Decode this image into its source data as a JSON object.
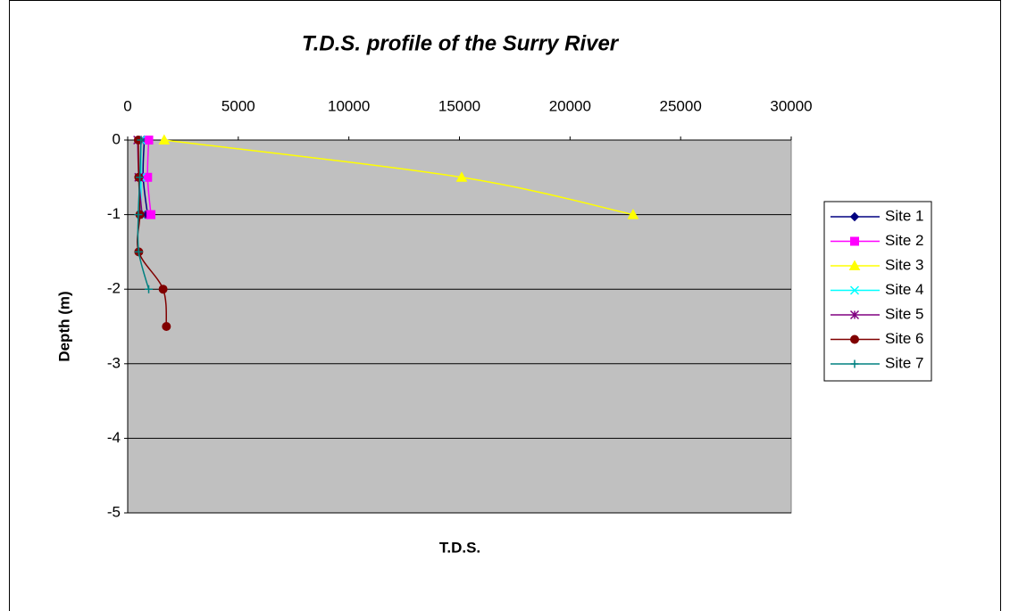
{
  "chart_data": {
    "type": "scatter",
    "title": "T.D.S. profile of the Surry River",
    "x_label": "T.D.S.",
    "y_label": "Depth (m)",
    "xlim": [
      0,
      30000
    ],
    "xticks": [
      0,
      5000,
      10000,
      15000,
      20000,
      25000,
      30000
    ],
    "ylim": [
      -5,
      0
    ],
    "yticks": [
      0,
      -1,
      -2,
      -3,
      -4,
      -5
    ],
    "grid": true,
    "smooth": true,
    "legend": "right",
    "series": [
      {
        "name": "Site 1",
        "color": "#000080",
        "marker": "diamond",
        "x": [
          750,
          700,
          900
        ],
        "values": [
          0,
          -0.5,
          -1
        ]
      },
      {
        "name": "Site 2",
        "color": "#ff00ff",
        "marker": "square",
        "x": [
          950,
          900,
          1050
        ],
        "values": [
          0,
          -0.5,
          -1
        ]
      },
      {
        "name": "Site 3",
        "color": "#ffff00",
        "marker": "triangle",
        "x": [
          1650,
          15100,
          22850
        ],
        "values": [
          0,
          -0.5,
          -1
        ]
      },
      {
        "name": "Site 4",
        "color": "#00ffff",
        "marker": "x",
        "x": [
          600,
          600,
          600
        ],
        "values": [
          0,
          -0.5,
          -1
        ]
      },
      {
        "name": "Site 5",
        "color": "#800080",
        "marker": "star",
        "x": [
          450,
          500,
          650
        ],
        "values": [
          0,
          -0.5,
          -1
        ]
      },
      {
        "name": "Site 6",
        "color": "#800000",
        "marker": "circle",
        "x": [
          480,
          500,
          550,
          500,
          1600,
          1750
        ],
        "values": [
          0,
          -0.5,
          -1,
          -1.5,
          -2,
          -2.5
        ]
      },
      {
        "name": "Site 7",
        "color": "#008080",
        "marker": "plus",
        "x": [
          600,
          550,
          480,
          500,
          950
        ],
        "values": [
          0,
          -0.5,
          -1,
          -1.5,
          -2
        ]
      }
    ]
  }
}
